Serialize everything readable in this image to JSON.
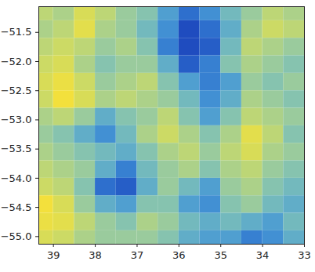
{
  "chart_data": {
    "type": "heatmap",
    "xlim": [
      39.35,
      33.0
    ],
    "ylim": [
      -55.13,
      -51.06
    ],
    "xticks": [
      39,
      38,
      37,
      36,
      35,
      34,
      33
    ],
    "yticks": [
      {
        "value": -51.5,
        "label": "−51.5"
      },
      {
        "value": -52.0,
        "label": "−52.0"
      },
      {
        "value": -52.5,
        "label": "−52.5"
      },
      {
        "value": -53.0,
        "label": "−53.0"
      },
      {
        "value": -53.5,
        "label": "−53.5"
      },
      {
        "value": -54.0,
        "label": "−54.0"
      },
      {
        "value": -54.5,
        "label": "−54.5"
      },
      {
        "value": -55.0,
        "label": "−55.0"
      }
    ],
    "cells": {
      "x": [
        39.25,
        38.75,
        38.25,
        37.75,
        37.25,
        36.75,
        36.25,
        35.75,
        35.25,
        34.75,
        34.25,
        33.75,
        33.25
      ],
      "y": [
        -51.15,
        -51.45,
        -51.75,
        -52.05,
        -52.35,
        -52.65,
        -52.95,
        -53.25,
        -53.55,
        -53.85,
        -54.15,
        -54.45,
        -54.75,
        -55.05
      ],
      "values": [
        [
          0.6,
          0.55,
          0.7,
          0.6,
          0.5,
          0.45,
          0.3,
          0.15,
          0.25,
          0.4,
          0.5,
          0.6,
          0.55
        ],
        [
          0.55,
          0.6,
          0.75,
          0.55,
          0.5,
          0.4,
          0.25,
          0.05,
          0.15,
          0.35,
          0.55,
          0.65,
          0.6
        ],
        [
          0.6,
          0.65,
          0.6,
          0.5,
          0.55,
          0.45,
          0.2,
          0.05,
          0.1,
          0.4,
          0.6,
          0.55,
          0.5
        ],
        [
          0.65,
          0.7,
          0.55,
          0.45,
          0.5,
          0.5,
          0.35,
          0.1,
          0.2,
          0.45,
          0.55,
          0.5,
          0.45
        ],
        [
          0.7,
          0.8,
          0.65,
          0.5,
          0.55,
          0.6,
          0.45,
          0.3,
          0.2,
          0.3,
          0.5,
          0.45,
          0.5
        ],
        [
          0.65,
          0.85,
          0.7,
          0.55,
          0.6,
          0.55,
          0.5,
          0.4,
          0.25,
          0.35,
          0.55,
          0.5,
          0.45
        ],
        [
          0.55,
          0.6,
          0.5,
          0.35,
          0.45,
          0.5,
          0.6,
          0.45,
          0.3,
          0.45,
          0.6,
          0.55,
          0.5
        ],
        [
          0.5,
          0.45,
          0.35,
          0.25,
          0.4,
          0.55,
          0.65,
          0.55,
          0.45,
          0.55,
          0.75,
          0.6,
          0.45
        ],
        [
          0.55,
          0.5,
          0.45,
          0.4,
          0.35,
          0.45,
          0.55,
          0.6,
          0.5,
          0.6,
          0.7,
          0.55,
          0.5
        ],
        [
          0.6,
          0.55,
          0.5,
          0.35,
          0.2,
          0.4,
          0.5,
          0.55,
          0.45,
          0.55,
          0.6,
          0.5,
          0.45
        ],
        [
          0.65,
          0.6,
          0.45,
          0.15,
          0.1,
          0.35,
          0.5,
          0.4,
          0.3,
          0.5,
          0.55,
          0.45,
          0.4
        ],
        [
          0.85,
          0.7,
          0.5,
          0.35,
          0.3,
          0.45,
          0.45,
          0.3,
          0.25,
          0.45,
          0.5,
          0.4,
          0.35
        ],
        [
          0.8,
          0.75,
          0.6,
          0.5,
          0.45,
          0.55,
          0.5,
          0.4,
          0.35,
          0.4,
          0.35,
          0.3,
          0.4
        ],
        [
          0.7,
          0.65,
          0.55,
          0.5,
          0.5,
          0.5,
          0.45,
          0.35,
          0.3,
          0.3,
          0.2,
          0.25,
          0.35
        ]
      ]
    }
  }
}
